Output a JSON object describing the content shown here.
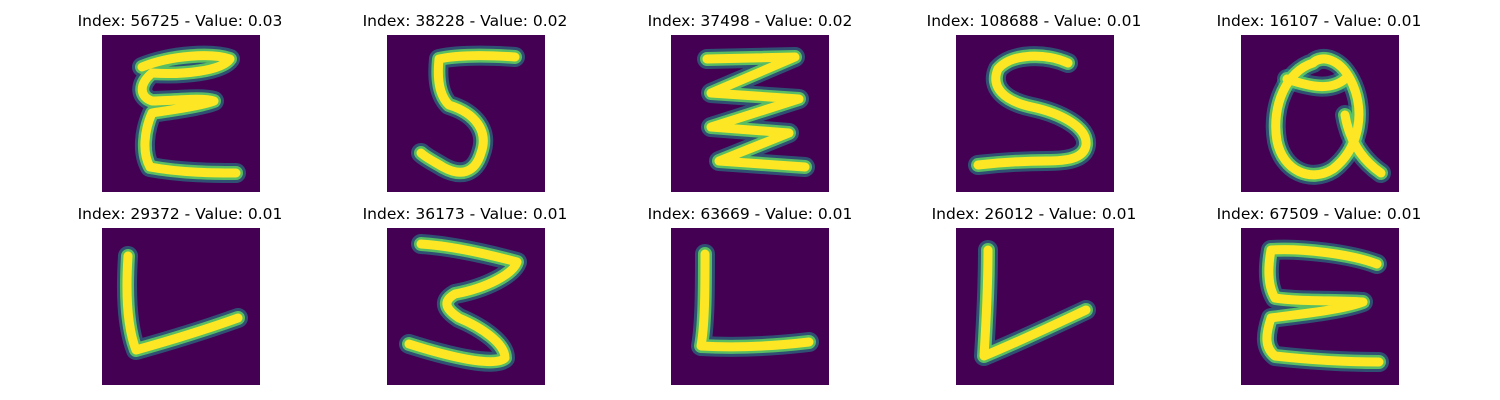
{
  "colors": {
    "background": "#440154",
    "stroke_core": "#fde725",
    "stroke_edge": "#21918c"
  },
  "tiles": [
    {
      "title": "Index: 56725 - Value: 0.03",
      "glyph": "E"
    },
    {
      "title": "Index: 38228 - Value: 0.02",
      "glyph": "5"
    },
    {
      "title": "Index: 37498 - Value: 0.02",
      "glyph": "z-zigzag"
    },
    {
      "title": "Index: 108688 - Value: 0.01",
      "glyph": "S"
    },
    {
      "title": "Index: 16107 - Value: 0.01",
      "glyph": "Q"
    },
    {
      "title": "Index: 29372 - Value: 0.01",
      "glyph": "L"
    },
    {
      "title": "Index: 36173 - Value: 0.01",
      "glyph": "3"
    },
    {
      "title": "Index: 63669 - Value: 0.01",
      "glyph": "L"
    },
    {
      "title": "Index: 26012 - Value: 0.01",
      "glyph": "L"
    },
    {
      "title": "Index: 67509 - Value: 0.01",
      "glyph": "E"
    }
  ]
}
